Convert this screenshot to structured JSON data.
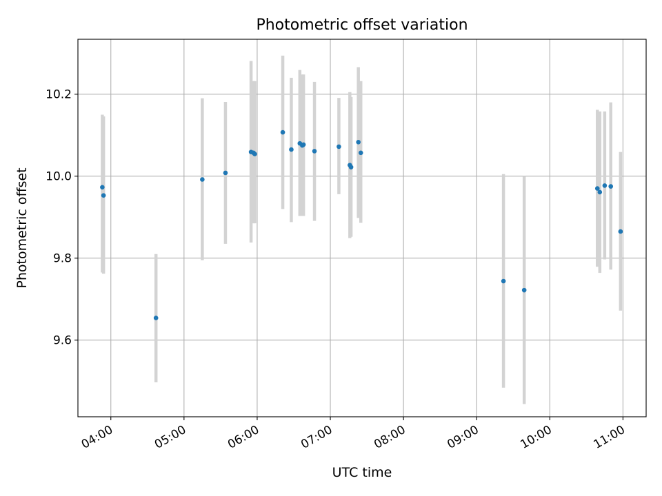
{
  "chart_data": {
    "type": "scatter",
    "title": "Photometric offset variation",
    "xlabel": "UTC time",
    "ylabel": "Photometric offset",
    "x_tick_labels": [
      "04:00",
      "05:00",
      "06:00",
      "07:00",
      "08:00",
      "09:00",
      "10:00",
      "11:00"
    ],
    "x_ticks": [
      "04:00",
      "05:00",
      "06:00",
      "07:00",
      "08:00",
      "09:00",
      "10:00",
      "11:00"
    ],
    "y_tick_labels": [
      "9.6",
      "9.8",
      "10.0",
      "10.2"
    ],
    "y_ticks": [
      9.6,
      9.8,
      10.0,
      10.2
    ],
    "xlim": [
      "03:33",
      "11:19"
    ],
    "ylim": [
      9.413,
      10.334
    ],
    "grid": true,
    "legend": "none",
    "colors": {
      "point": "#1f77b4",
      "errorbar": "#d3d3d3",
      "grid": "#b0b0b0"
    },
    "points": [
      {
        "x": "03:53",
        "y": 9.973,
        "err_low": 9.765,
        "err_high": 10.15
      },
      {
        "x": "03:54",
        "y": 9.953,
        "err_low": 9.762,
        "err_high": 10.146
      },
      {
        "x": "04:37",
        "y": 9.654,
        "err_low": 9.497,
        "err_high": 9.81
      },
      {
        "x": "05:15",
        "y": 9.992,
        "err_low": 9.795,
        "err_high": 10.19
      },
      {
        "x": "05:34",
        "y": 10.008,
        "err_low": 9.835,
        "err_high": 10.181
      },
      {
        "x": "05:55",
        "y": 10.059,
        "err_low": 9.838,
        "err_high": 10.281
      },
      {
        "x": "05:57",
        "y": 10.057,
        "err_low": 9.885,
        "err_high": 10.232
      },
      {
        "x": "05:58",
        "y": 10.054,
        "err_low": 9.885,
        "err_high": 10.232
      },
      {
        "x": "06:21",
        "y": 10.107,
        "err_low": 9.92,
        "err_high": 10.294
      },
      {
        "x": "06:28",
        "y": 10.065,
        "err_low": 9.888,
        "err_high": 10.24
      },
      {
        "x": "06:35",
        "y": 10.08,
        "err_low": 9.903,
        "err_high": 10.259
      },
      {
        "x": "06:37",
        "y": 10.075,
        "err_low": 9.903,
        "err_high": 10.248
      },
      {
        "x": "06:38",
        "y": 10.077,
        "err_low": 9.903,
        "err_high": 10.248
      },
      {
        "x": "06:47",
        "y": 10.061,
        "err_low": 9.891,
        "err_high": 10.23
      },
      {
        "x": "07:07",
        "y": 10.072,
        "err_low": 9.956,
        "err_high": 10.191
      },
      {
        "x": "07:16",
        "y": 10.027,
        "err_low": 9.849,
        "err_high": 10.205
      },
      {
        "x": "07:17",
        "y": 10.022,
        "err_low": 9.852,
        "err_high": 10.193
      },
      {
        "x": "07:23",
        "y": 10.083,
        "err_low": 9.898,
        "err_high": 10.266
      },
      {
        "x": "07:25",
        "y": 10.057,
        "err_low": 9.886,
        "err_high": 10.232
      },
      {
        "x": "09:22",
        "y": 9.744,
        "err_low": 9.484,
        "err_high": 10.005
      },
      {
        "x": "09:39",
        "y": 9.722,
        "err_low": 9.444,
        "err_high": 10.0
      },
      {
        "x": "10:39",
        "y": 9.97,
        "err_low": 9.779,
        "err_high": 10.162
      },
      {
        "x": "10:41",
        "y": 9.961,
        "err_low": 9.764,
        "err_high": 10.158
      },
      {
        "x": "10:45",
        "y": 9.977,
        "err_low": 9.797,
        "err_high": 10.158
      },
      {
        "x": "10:50",
        "y": 9.975,
        "err_low": 9.772,
        "err_high": 10.18
      },
      {
        "x": "10:58",
        "y": 9.865,
        "err_low": 9.672,
        "err_high": 10.059
      }
    ]
  }
}
